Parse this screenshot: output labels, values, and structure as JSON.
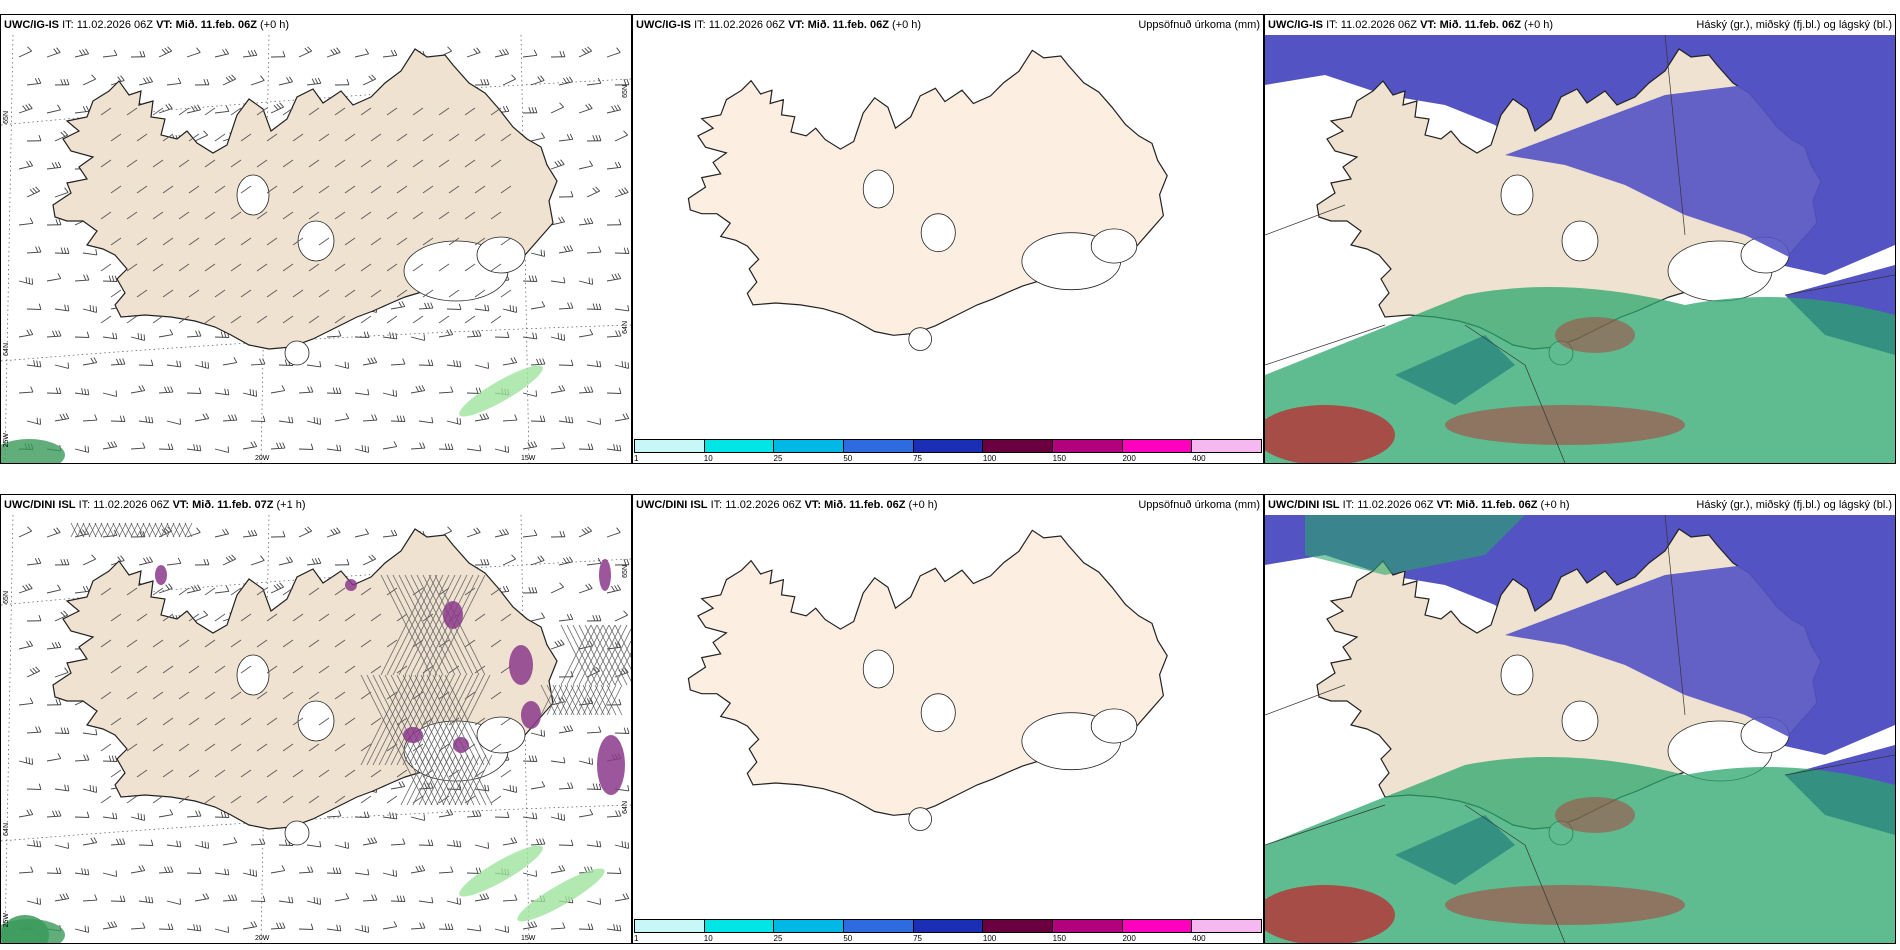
{
  "colors": {
    "land": "#f0e2d0",
    "land_light": "#fcefe2",
    "ocean": "#ffffff",
    "high_cloud": "#5353c4",
    "mid_cloud": "#2aa56b",
    "low_cloud": "#b23a3a",
    "precip_green": "#9ee39e",
    "precip_purple": "#8b3a8b",
    "coast": "#222222"
  },
  "precip_scale": {
    "colors": [
      "#c8f7f7",
      "#00e5e5",
      "#00b8e6",
      "#2e6be0",
      "#1a2fb5",
      "#6b0040",
      "#b3007d",
      "#ff00bf",
      "#f5b8f0"
    ],
    "ticks": [
      "1",
      "10",
      "25",
      "50",
      "75",
      "100",
      "150",
      "200",
      "400"
    ]
  },
  "panels": [
    {
      "model": "UWC/IG-IS",
      "it_label": "IT:",
      "it": "11.02.2026 06Z",
      "vt_label": "VT:",
      "vt": "Mið. 11.feb. 06Z",
      "lead": "(+0 h)",
      "right_title": "",
      "type": "wind",
      "lat_top": "65N",
      "lat_mid": "64N",
      "lat_bot": "25W",
      "lat_right_top": "65N",
      "lat_right_mid": "64N",
      "lon_1": "20W",
      "lon_2": "15W"
    },
    {
      "model": "UWC/IG-IS",
      "it_label": "IT:",
      "it": "11.02.2026 06Z",
      "vt_label": "VT:",
      "vt": "Mið. 11.feb. 06Z",
      "lead": "(+0 h)",
      "right_title": "Uppsöfnuð úrkoma (mm)",
      "type": "precip"
    },
    {
      "model": "UWC/IG-IS",
      "it_label": "IT:",
      "it": "11.02.2026 06Z",
      "vt_label": "VT:",
      "vt": "Mið. 11.feb. 06Z",
      "lead": "(+0 h)",
      "right_title": "Háský (gr.), miðský (fj.bl.) og lágský (bl.)",
      "type": "cloud"
    },
    {
      "model": "UWC/DINI ISL",
      "it_label": "IT:",
      "it": "11.02.2026 06Z",
      "vt_label": "VT:",
      "vt": "Mið. 11.feb. 07Z",
      "lead": "(+1 h)",
      "right_title": "",
      "type": "wind",
      "lat_top": "65N",
      "lat_mid": "64N",
      "lat_bot": "25W",
      "lat_right_top": "65N",
      "lat_right_mid": "64N",
      "lon_1": "20W",
      "lon_2": "15W"
    },
    {
      "model": "UWC/DINI ISL",
      "it_label": "IT:",
      "it": "11.02.2026 06Z",
      "vt_label": "VT:",
      "vt": "Mið. 11.feb. 06Z",
      "lead": "(+0 h)",
      "right_title": "Uppsöfnuð úrkoma (mm)",
      "type": "precip"
    },
    {
      "model": "UWC/DINI ISL",
      "it_label": "IT:",
      "it": "11.02.2026 06Z",
      "vt_label": "VT:",
      "vt": "Mið. 11.feb. 06Z",
      "lead": "(+0 h)",
      "right_title": "Háský (gr.), miðský (fj.bl.) og lágský (bl.)",
      "type": "cloud"
    }
  ]
}
